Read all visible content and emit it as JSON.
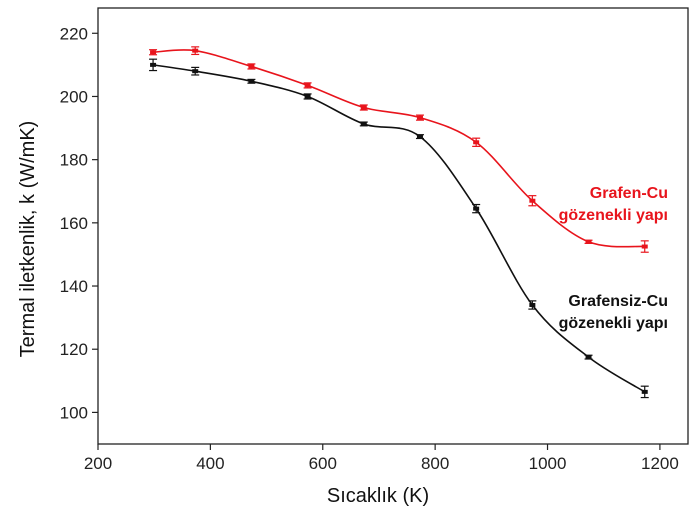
{
  "chart_data": {
    "type": "line",
    "xlabel": "Sıcaklık (K)",
    "ylabel": "Termal iletkenlik, k (W/mK)",
    "xlim": [
      200,
      1250
    ],
    "ylim": [
      90,
      228
    ],
    "xticks": [
      200,
      400,
      600,
      800,
      1000,
      1200
    ],
    "yticks": [
      100,
      120,
      140,
      160,
      180,
      200,
      220
    ],
    "grid": false,
    "series": [
      {
        "name": "Grafen-Cu gözenekli yapı",
        "color": "#e8141c",
        "x": [
          298,
          373,
          473,
          573,
          673,
          773,
          873,
          973,
          1073,
          1173
        ],
        "y": [
          214,
          214.5,
          209.5,
          203.5,
          196.5,
          193.3,
          185.5,
          167,
          154,
          152.5
        ],
        "err": [
          0.8,
          1.2,
          0.8,
          0.8,
          0.8,
          0.8,
          1.3,
          1.6,
          0.5,
          1.8
        ]
      },
      {
        "name": "Grafensiz-Cu gözenekli yapı",
        "color": "#111111",
        "x": [
          298,
          373,
          473,
          573,
          673,
          773,
          873,
          973,
          1073,
          1173
        ],
        "y": [
          210,
          208,
          204.8,
          200,
          191.3,
          187.3,
          164.5,
          134,
          117.5,
          106.5
        ],
        "err": [
          1.8,
          1.2,
          0.6,
          0.8,
          0.6,
          0.6,
          1.3,
          1.3,
          0.6,
          1.8
        ]
      }
    ],
    "annotations": [
      {
        "lines": [
          "Grafen-Cu",
          "gözenekli yapı"
        ],
        "color": "#e8141c"
      },
      {
        "lines": [
          "Grafensiz-Cu",
          "gözenekli yapı"
        ],
        "color": "#111111"
      }
    ]
  }
}
